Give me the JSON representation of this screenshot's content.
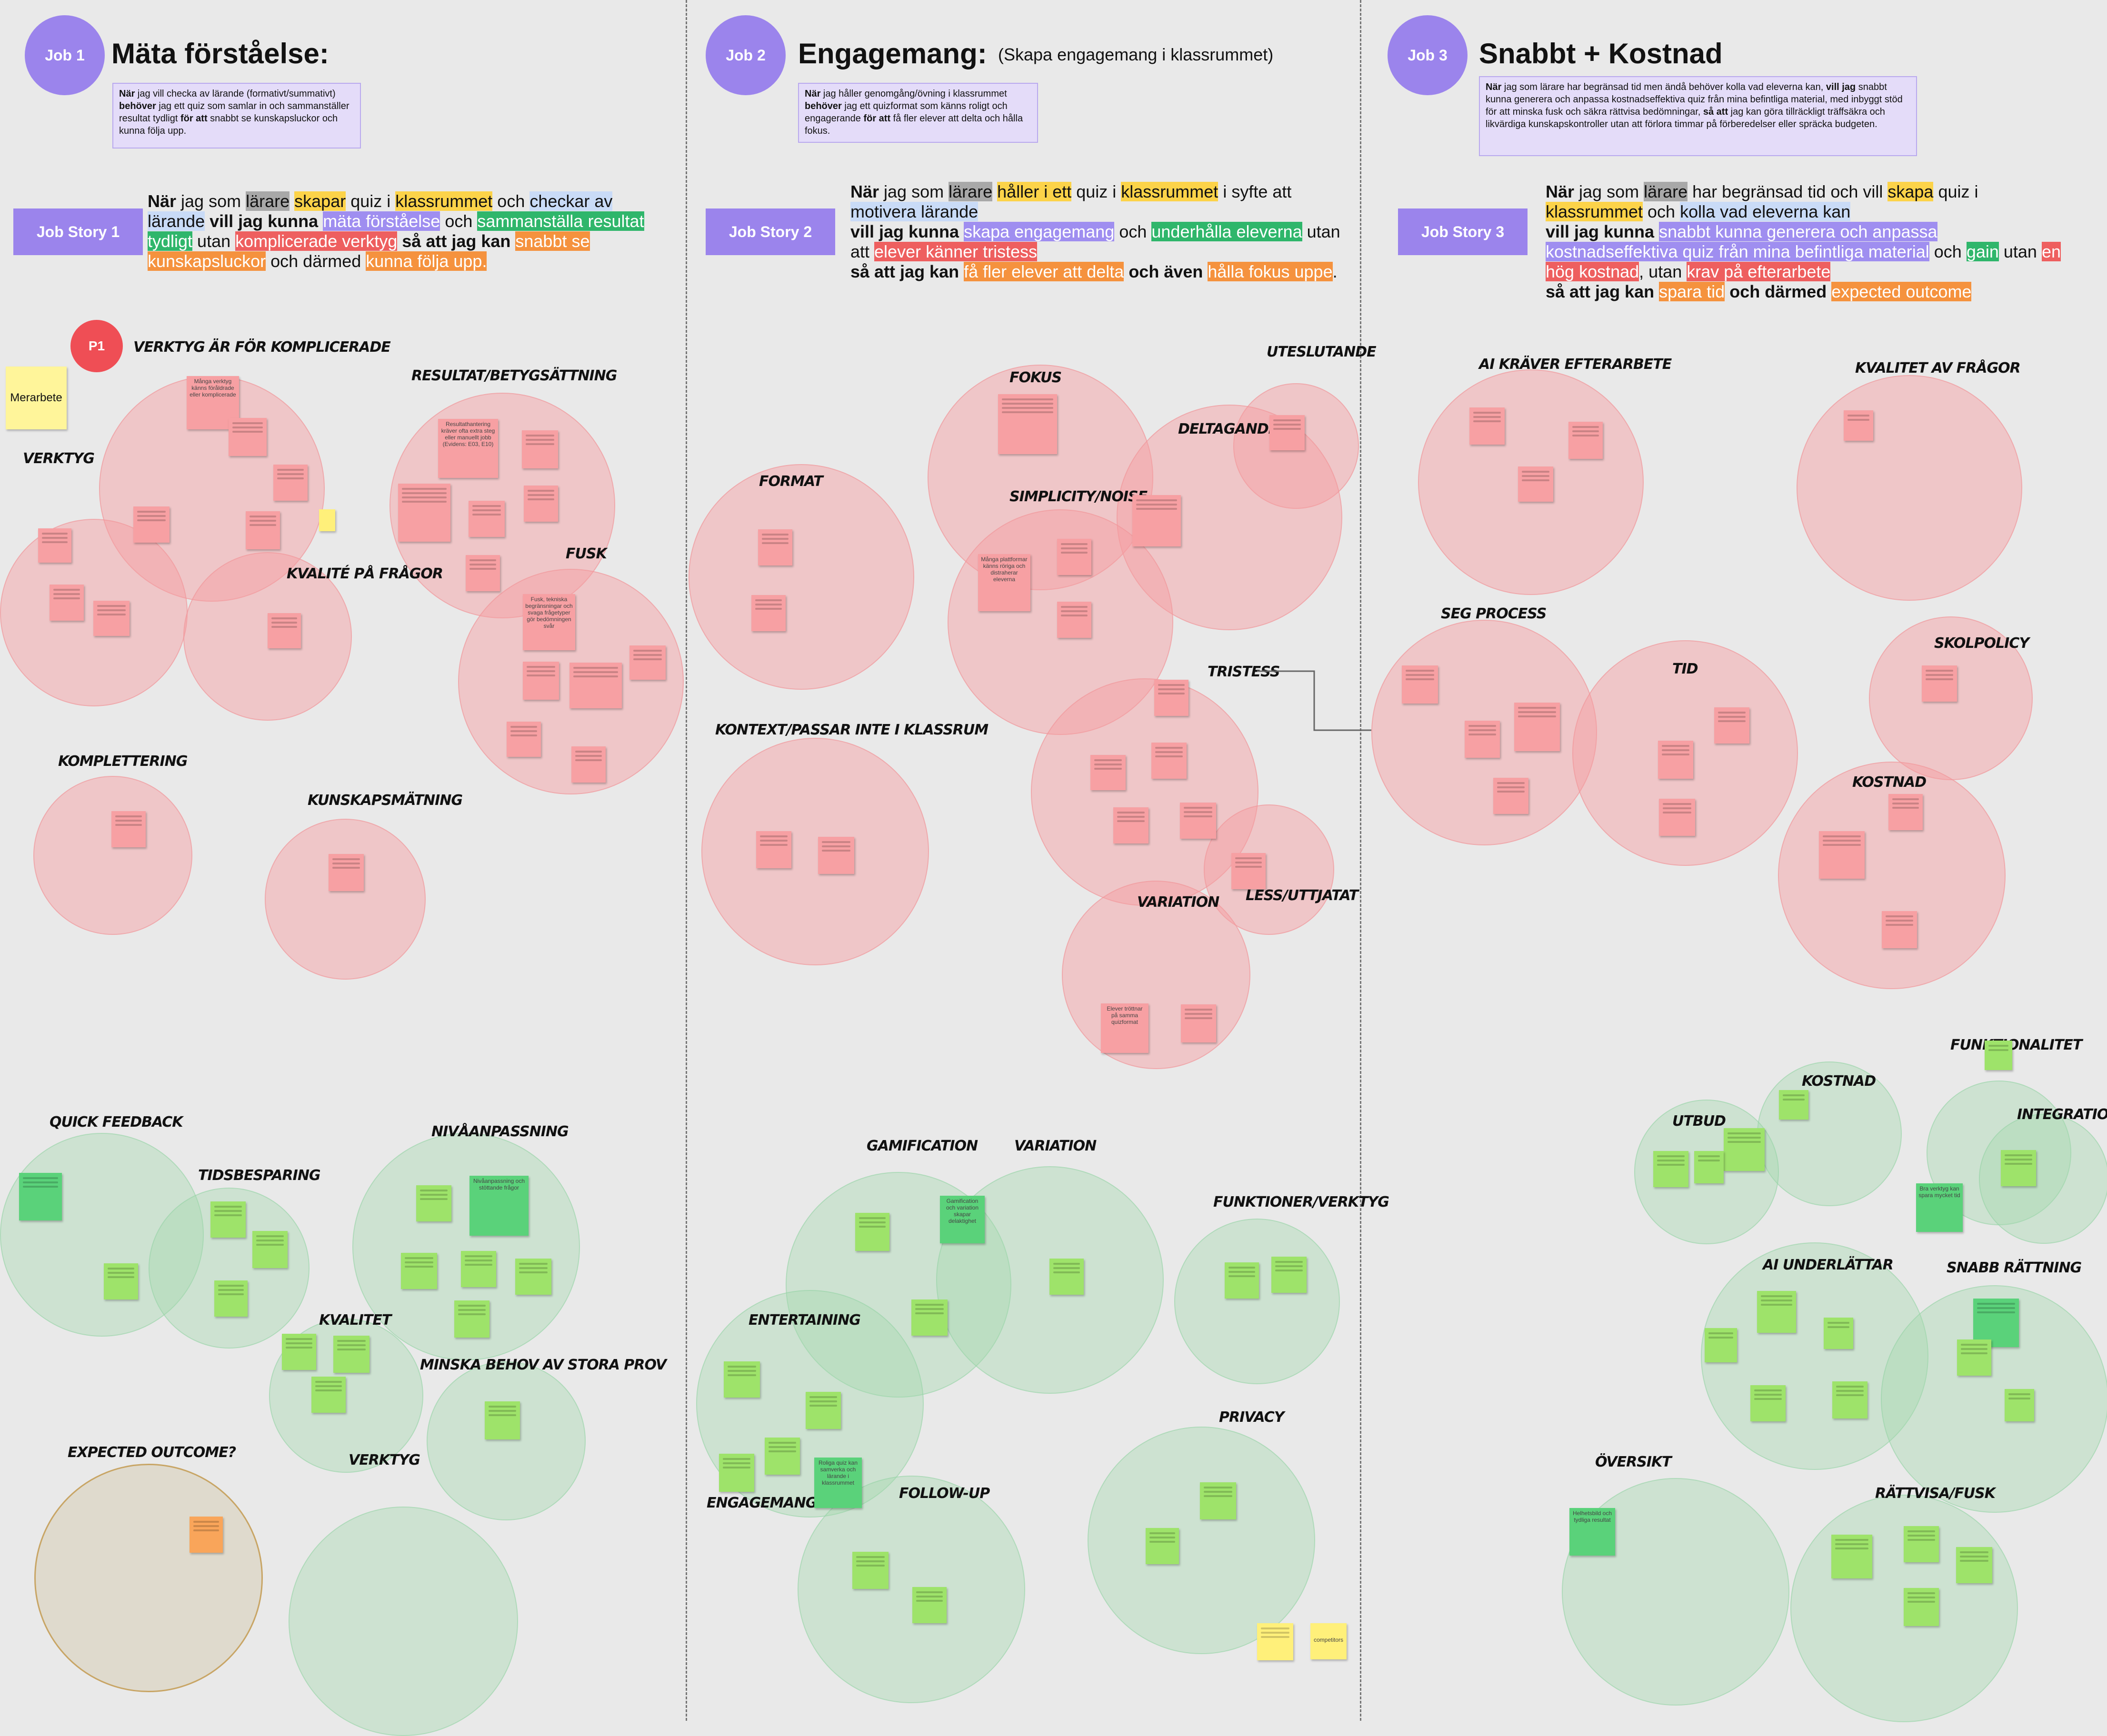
{
  "jobs": [
    {
      "badge": "Job 1",
      "title": "Mäta förståelse:",
      "subtitle": "",
      "desc_parts": [
        {
          "t": "När",
          "b": true
        },
        {
          "t": " jag vill checka av lärande (formativt/summativt) "
        },
        {
          "t": "behöver",
          "b": true
        },
        {
          "t": " jag ett quiz som samlar in och sammanställer resultat tydligt "
        },
        {
          "t": "för att",
          "b": true
        },
        {
          "t": " snabbt se kunskapsluckor och kunna följa upp."
        }
      ],
      "story_label": "Job Story 1",
      "story_parts": [
        {
          "t": "När",
          "b": true
        },
        {
          "t": " jag som "
        },
        {
          "t": "lärare",
          "h": "gray"
        },
        {
          "t": " "
        },
        {
          "t": "skapar",
          "h": "yellow"
        },
        {
          "t": " quiz i "
        },
        {
          "t": "klassrummet",
          "h": "yellow"
        },
        {
          "t": " och "
        },
        {
          "t": "checkar av lärande",
          "h": "blue"
        },
        {
          "t": " "
        },
        {
          "t": "vill jag kunna",
          "b": true
        },
        {
          "t": " "
        },
        {
          "t": "mäta förståelse",
          "h": "purple"
        },
        {
          "t": " och "
        },
        {
          "t": "sammanställa resultat tydligt",
          "h": "green"
        },
        {
          "t": " utan "
        },
        {
          "t": "komplicerade verktyg",
          "h": "red"
        },
        {
          "t": " "
        },
        {
          "t": "så att jag kan",
          "b": true
        },
        {
          "t": " "
        },
        {
          "t": "snabbt se kunskapsluckor",
          "h": "orange"
        },
        {
          "t": " och därmed "
        },
        {
          "t": "kunna följa upp.",
          "h": "orange"
        }
      ]
    },
    {
      "badge": "Job 2",
      "title": "Engagemang:",
      "subtitle": "(Skapa engagemang i klassrummet)",
      "desc_parts": [
        {
          "t": "När",
          "b": true
        },
        {
          "t": " jag håller genomgång/övning i klassrummet "
        },
        {
          "t": "behöver",
          "b": true
        },
        {
          "t": " jag ett quizformat som känns roligt och engagerande "
        },
        {
          "t": "för att",
          "b": true
        },
        {
          "t": " få fler elever att delta och hålla fokus."
        }
      ],
      "story_label": "Job Story 2",
      "story_parts": [
        {
          "t": "När",
          "b": true
        },
        {
          "t": " jag som "
        },
        {
          "t": "lärare",
          "h": "gray"
        },
        {
          "t": " "
        },
        {
          "t": "håller i ett",
          "h": "yellow"
        },
        {
          "t": " quiz i "
        },
        {
          "t": "klassrummet",
          "h": "yellow"
        },
        {
          "t": " i syfte att "
        },
        {
          "t": "motivera lärande",
          "h": "blue"
        },
        {
          "br": true
        },
        {
          "t": "vill jag kunna",
          "b": true
        },
        {
          "t": " "
        },
        {
          "t": "skapa engagemang",
          "h": "purple"
        },
        {
          "t": " och "
        },
        {
          "t": "underhålla eleverna",
          "h": "green"
        },
        {
          "t": " utan att "
        },
        {
          "t": "elever känner tristess",
          "h": "red"
        },
        {
          "br": true
        },
        {
          "t": "så att jag kan",
          "b": true
        },
        {
          "t": " "
        },
        {
          "t": "få fler elever att delta",
          "h": "orange"
        },
        {
          "t": " "
        },
        {
          "t": "och även",
          "b": true
        },
        {
          "t": " "
        },
        {
          "t": "hålla fokus uppe",
          "h": "orange"
        },
        {
          "t": "."
        }
      ]
    },
    {
      "badge": "Job 3",
      "title": "Snabbt + Kostnad",
      "subtitle": "",
      "desc_parts": [
        {
          "t": "När",
          "b": true
        },
        {
          "t": " jag som lärare har begränsad tid men ändå behöver kolla vad eleverna kan, "
        },
        {
          "t": "vill jag",
          "b": true
        },
        {
          "t": " snabbt kunna generera och anpassa kostnadseffektiva quiz från mina befintliga material, med inbyggt stöd för att minska fusk och säkra rättvisa bedömningar, "
        },
        {
          "t": "så att",
          "b": true
        },
        {
          "t": " jag kan göra tillräckligt träffsäkra och likvärdiga kunskapskontroller utan att förlora timmar på förberedelser eller spräcka budgeten."
        }
      ],
      "story_label": "Job Story 3",
      "story_parts": [
        {
          "t": "När",
          "b": true
        },
        {
          "t": " jag som "
        },
        {
          "t": "lärare",
          "h": "gray"
        },
        {
          "t": " har begränsad tid och vill "
        },
        {
          "t": "skapa",
          "h": "yellow"
        },
        {
          "t": " quiz i "
        },
        {
          "t": "klassrummet",
          "h": "yellow"
        },
        {
          "t": " och "
        },
        {
          "t": "kolla vad eleverna kan",
          "h": "blue"
        },
        {
          "br": true
        },
        {
          "t": "vill jag kunna",
          "b": true
        },
        {
          "t": " "
        },
        {
          "t": "snabbt kunna generera och anpassa kostnadseffektiva quiz från mina befintliga material",
          "h": "purple"
        },
        {
          "t": " och "
        },
        {
          "t": "gain",
          "h": "green"
        },
        {
          "t": " utan "
        },
        {
          "t": "en hög kostnad",
          "h": "red"
        },
        {
          "t": ", utan "
        },
        {
          "t": "krav på efterarbete",
          "h": "red"
        },
        {
          "br": true
        },
        {
          "t": "så att jag kan",
          "b": true
        },
        {
          "t": " "
        },
        {
          "t": "spara tid",
          "h": "orange"
        },
        {
          "t": " "
        },
        {
          "t": "och därmed",
          "b": true
        },
        {
          "t": " "
        },
        {
          "t": "expected outcome",
          "h": "orange"
        }
      ]
    }
  ],
  "p1_badge": "P1",
  "merarbete": "Merarbete",
  "cluster_labels": {
    "verktyg_for_komplicerade": "VERKTYG ÄR FÖR KOMPLICERADE",
    "resultat_betyg": "RESULTAT/BETYGSÄTTNING",
    "verktyg1": "VERKTYG",
    "kvalite_fragor": "KVALITÉ PÅ FRÅGOR",
    "fusk1": "FUSK",
    "komplettering": "KOMPLETTERING",
    "kunskapsmatning": "KUNSKAPSMÄTNING",
    "quick_feedback": "QUICK FEEDBACK",
    "tidsbesparing": "TIDSBESPARING",
    "nivaanpassning": "NIVÅANPASSNING",
    "kvalitet1": "KVALITET",
    "minska_behov": "MINSKA BEHOV AV STORA PROV",
    "expected_outcome": "EXPECTED OUTCOME?",
    "verktyg2": "VERKTYG",
    "fokus": "FOKUS",
    "uteslutande": "UTESLUTANDE",
    "deltagande": "DELTAGANDE",
    "format": "FORMAT",
    "simplicity": "SIMPLICITY/NOISE",
    "tristess": "TRISTESS",
    "kontext": "KONTEXT/PASSAR INTE I KLASSRUM",
    "variation1": "VARIATION",
    "less": "LESS/UTTJATAT",
    "gamification": "GAMIFICATION",
    "variation2": "VARIATION",
    "funktioner": "FUNKTIONER/VERKTYG",
    "entertaining": "ENTERTAINING",
    "engagemang": "ENGAGEMANG",
    "followup": "FOLLOW-UP",
    "privacy": "PRIVACY",
    "ai_kraver": "AI KRÄVER EFTERARBETE",
    "kvalitet_fragor": "KVALITET AV FRÅGOR",
    "seg_process": "SEG PROCESS",
    "tid": "TID",
    "skolpolicy": "SKOLPOLICY",
    "kostnad1": "KOSTNAD",
    "funktionalitet": "FUNKTIONALITET",
    "kostnad2": "KOSTNAD",
    "utbud": "UTBUD",
    "integration": "INTEGRATION AN",
    "ai_underlattar": "AI UNDERLÄTTAR",
    "snabb_rattning": "SNABB RÄTTNING",
    "oversikt": "ÖVERSIKT",
    "rattvisa": "RÄTTVISA/FUSK"
  },
  "notes": {
    "n_mangaverktyg": "Många verktyg känns föråldrade eller komplicerade",
    "n_resultat": "Resultathantering kräver ofta extra steg eller manuellt jobb (Evidens: E03, E10)",
    "n_fusk": "Fusk, tekniska begränsningar och svaga frågetyper gör bedömningen svår",
    "n_mangaplatt": "Många plattformar känns röriga och distraherar eleverna",
    "n_tristess": "Elever tröttnar på samma quizformat",
    "n_nivaanpassning": "Nivåanpassning och stöttande frågor",
    "n_gamification": "Gamification och variation skapar delaktighet",
    "n_roliga": "Roliga quiz kan samverka och lärande i klassrummet",
    "n_bra_verktyg": "Bra verktyg kan spara mycket tid",
    "n_helhet": "Helhetsbild och tydliga resultat",
    "competitors": "competitors"
  }
}
